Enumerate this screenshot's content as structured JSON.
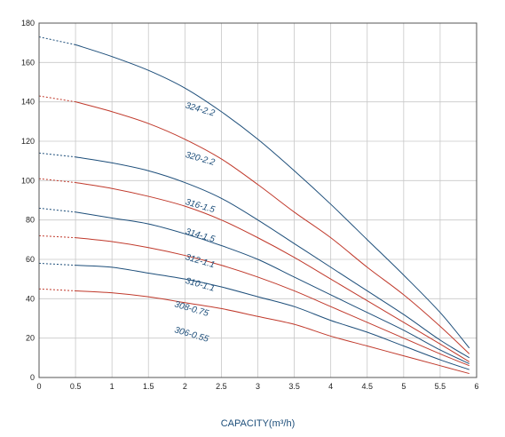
{
  "chart_data": {
    "type": "line",
    "title": "",
    "xlabel": "CAPACITY(m³/h)",
    "ylabel": "",
    "xlim": [
      0,
      6
    ],
    "ylim": [
      0,
      180
    ],
    "x_ticks": [
      "0",
      "0.5",
      "1",
      "1.5",
      "2",
      "2.5",
      "3",
      "3.5",
      "4",
      "4.5",
      "5",
      "5.5",
      "6"
    ],
    "y_ticks": [
      "0",
      "20",
      "40",
      "60",
      "80",
      "100",
      "120",
      "140",
      "160",
      "180"
    ],
    "grid": true,
    "colors": {
      "blue": "#1d4e7a",
      "red": "#c0392b",
      "grid": "#c8c8c8",
      "frame": "#555555"
    },
    "series": [
      {
        "name": "324-2.2",
        "color": "#1d4e7a",
        "dashed_until_x": 0.5,
        "label_x": 2.0,
        "label_y": 137,
        "x": [
          0,
          0.5,
          1,
          1.5,
          2,
          2.5,
          3,
          3.5,
          4,
          4.5,
          5,
          5.5,
          5.9
        ],
        "y": [
          173,
          169,
          163,
          156,
          147,
          135,
          121,
          105,
          88,
          70,
          52,
          33,
          15
        ]
      },
      {
        "name": "320-2.2",
        "color": "#c0392b",
        "dashed_until_x": 0.5,
        "label_x": 2.0,
        "label_y": 112,
        "x": [
          0,
          0.5,
          1,
          1.5,
          2,
          2.5,
          3,
          3.5,
          4,
          4.5,
          5,
          5.5,
          5.9
        ],
        "y": [
          143,
          140,
          135,
          129,
          121,
          111,
          98,
          84,
          71,
          56,
          42,
          26,
          12
        ]
      },
      {
        "name": "316-1.5",
        "color": "#1d4e7a",
        "dashed_until_x": 0.5,
        "label_x": 2.0,
        "label_y": 88,
        "x": [
          0,
          0.5,
          1,
          1.5,
          2,
          2.5,
          3,
          3.5,
          4,
          4.5,
          5,
          5.5,
          5.9
        ],
        "y": [
          114,
          112,
          109,
          105,
          99,
          91,
          80,
          68,
          56,
          44,
          32,
          19,
          10
        ]
      },
      {
        "name": "314-1.5",
        "color": "#c0392b",
        "dashed_until_x": 0.5,
        "label_x": 2.0,
        "label_y": 73,
        "x": [
          0,
          0.5,
          1,
          1.5,
          2,
          2.5,
          3,
          3.5,
          4,
          4.5,
          5,
          5.5,
          5.9
        ],
        "y": [
          101,
          99,
          96,
          92,
          87,
          80,
          71,
          61,
          50,
          39,
          28,
          17,
          8
        ]
      },
      {
        "name": "312-1.1",
        "color": "#1d4e7a",
        "dashed_until_x": 0.5,
        "label_x": 2.0,
        "label_y": 60,
        "x": [
          0,
          0.5,
          1,
          1.5,
          2,
          2.5,
          3,
          3.5,
          4,
          4.5,
          5,
          5.5,
          5.9
        ],
        "y": [
          86,
          84,
          81,
          78,
          73,
          67,
          60,
          51,
          42,
          33,
          24,
          14,
          7
        ]
      },
      {
        "name": "310-1.1",
        "color": "#c0392b",
        "dashed_until_x": 0.5,
        "label_x": 2.0,
        "label_y": 48,
        "x": [
          0,
          0.5,
          1,
          1.5,
          2,
          2.5,
          3,
          3.5,
          4,
          4.5,
          5,
          5.5,
          5.9
        ],
        "y": [
          72,
          71,
          69,
          66,
          62,
          57,
          51,
          44,
          36,
          28,
          20,
          12,
          6
        ]
      },
      {
        "name": "308-0.75",
        "color": "#1d4e7a",
        "dashed_until_x": 0.5,
        "label_x": 1.85,
        "label_y": 36,
        "x": [
          0,
          0.5,
          1,
          1.5,
          2,
          2.5,
          3,
          3.5,
          4,
          4.5,
          5,
          5.5,
          5.9
        ],
        "y": [
          58,
          57,
          56,
          53,
          50,
          46,
          41,
          36,
          29,
          23,
          16,
          9,
          4
        ]
      },
      {
        "name": "306-0.55",
        "color": "#c0392b",
        "dashed_until_x": 0.5,
        "label_x": 1.85,
        "label_y": 23,
        "x": [
          0,
          0.5,
          1,
          1.5,
          2,
          2.5,
          3,
          3.5,
          4,
          4.5,
          5,
          5.5,
          5.9
        ],
        "y": [
          45,
          44,
          43,
          41,
          38,
          35,
          31,
          27,
          21,
          16,
          11,
          6,
          2
        ]
      }
    ]
  }
}
